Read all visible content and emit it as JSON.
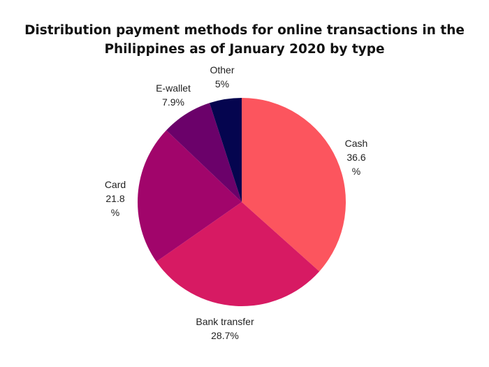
{
  "chart_data": {
    "type": "pie",
    "title_lines": [
      "Distribution payment methods for online transactions in the",
      "Philippines as of January 2020 by type"
    ],
    "slices": [
      {
        "name": "Cash",
        "value": 36.6,
        "label_lines": [
          "Cash",
          "36.6",
          "%"
        ],
        "color": "#fc555e"
      },
      {
        "name": "Bank transfer",
        "value": 28.7,
        "label_lines": [
          "Bank transfer",
          "28.7%"
        ],
        "color": "#d71a63"
      },
      {
        "name": "Card",
        "value": 21.8,
        "label_lines": [
          "Card",
          "21.8",
          "%"
        ],
        "color": "#a1056b"
      },
      {
        "name": "E-wallet",
        "value": 7.9,
        "label_lines": [
          "E-wallet",
          "7.9%"
        ],
        "color": "#6b016a"
      },
      {
        "name": "Other",
        "value": 5,
        "label_lines": [
          "Other",
          "5%"
        ],
        "color": "#05054f"
      }
    ],
    "start": "12 o'clock",
    "direction": "clockwise",
    "legend": "none"
  }
}
